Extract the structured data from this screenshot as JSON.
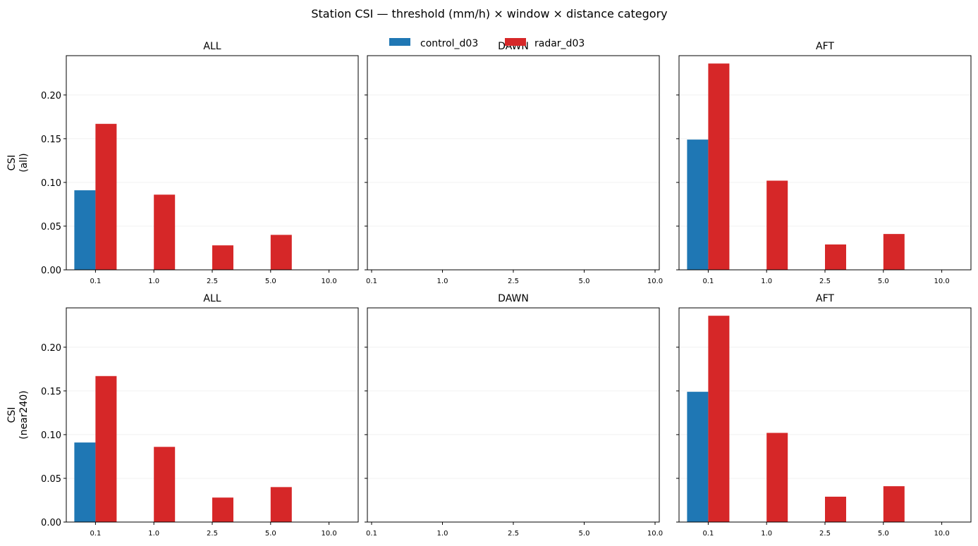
{
  "figure": {
    "title": "Station CSI — threshold (mm/h) × window × distance category"
  },
  "legend": {
    "placement": "top-center",
    "entries": [
      {
        "label": "control_d03",
        "color": "#1f77b4"
      },
      {
        "label": "radar_d03",
        "color": "#d62728"
      }
    ]
  },
  "chart_data": [
    {
      "type": "bar",
      "title": "ALL",
      "ylabel": "CSI\n(all)",
      "categories": [
        "0.1",
        "1.0",
        "2.5",
        "5.0",
        "10.0"
      ],
      "ylim": [
        0,
        0.245
      ],
      "yticks": [
        "0.00",
        "0.05",
        "0.10",
        "0.15",
        "0.20"
      ],
      "grid": true,
      "series": [
        {
          "name": "control_d03",
          "color": "#1f77b4",
          "values": [
            0.091,
            0,
            0,
            0,
            0
          ]
        },
        {
          "name": "radar_d03",
          "color": "#d62728",
          "values": [
            0.167,
            0.086,
            0.028,
            0.04,
            0
          ]
        }
      ]
    },
    {
      "type": "bar",
      "title": "DAWN",
      "ylabel": "",
      "categories": [
        "0.1",
        "1.0",
        "2.5",
        "5.0",
        "10.0"
      ],
      "ylim": [
        0,
        0.245
      ],
      "yticks": [],
      "grid": true,
      "series": []
    },
    {
      "type": "bar",
      "title": "AFT",
      "ylabel": "",
      "categories": [
        "0.1",
        "1.0",
        "2.5",
        "5.0",
        "10.0"
      ],
      "ylim": [
        0,
        0.245
      ],
      "yticks": [],
      "grid": true,
      "series": [
        {
          "name": "control_d03",
          "color": "#1f77b4",
          "values": [
            0.149,
            0,
            0,
            0,
            0
          ]
        },
        {
          "name": "radar_d03",
          "color": "#d62728",
          "values": [
            0.236,
            0.102,
            0.029,
            0.041,
            0
          ]
        }
      ]
    },
    {
      "type": "bar",
      "title": "ALL",
      "ylabel": "CSI\n(near240)",
      "categories": [
        "0.1",
        "1.0",
        "2.5",
        "5.0",
        "10.0"
      ],
      "ylim": [
        0,
        0.245
      ],
      "yticks": [
        "0.00",
        "0.05",
        "0.10",
        "0.15",
        "0.20"
      ],
      "grid": true,
      "series": [
        {
          "name": "control_d03",
          "color": "#1f77b4",
          "values": [
            0.091,
            0,
            0,
            0,
            0
          ]
        },
        {
          "name": "radar_d03",
          "color": "#d62728",
          "values": [
            0.167,
            0.086,
            0.028,
            0.04,
            0
          ]
        }
      ]
    },
    {
      "type": "bar",
      "title": "DAWN",
      "ylabel": "",
      "categories": [
        "0.1",
        "1.0",
        "2.5",
        "5.0",
        "10.0"
      ],
      "ylim": [
        0,
        0.245
      ],
      "yticks": [],
      "grid": true,
      "series": []
    },
    {
      "type": "bar",
      "title": "AFT",
      "ylabel": "",
      "categories": [
        "0.1",
        "1.0",
        "2.5",
        "5.0",
        "10.0"
      ],
      "ylim": [
        0,
        0.245
      ],
      "yticks": [],
      "grid": true,
      "series": [
        {
          "name": "control_d03",
          "color": "#1f77b4",
          "values": [
            0.149,
            0,
            0,
            0,
            0
          ]
        },
        {
          "name": "radar_d03",
          "color": "#d62728",
          "values": [
            0.236,
            0.102,
            0.029,
            0.041,
            0
          ]
        }
      ]
    }
  ]
}
